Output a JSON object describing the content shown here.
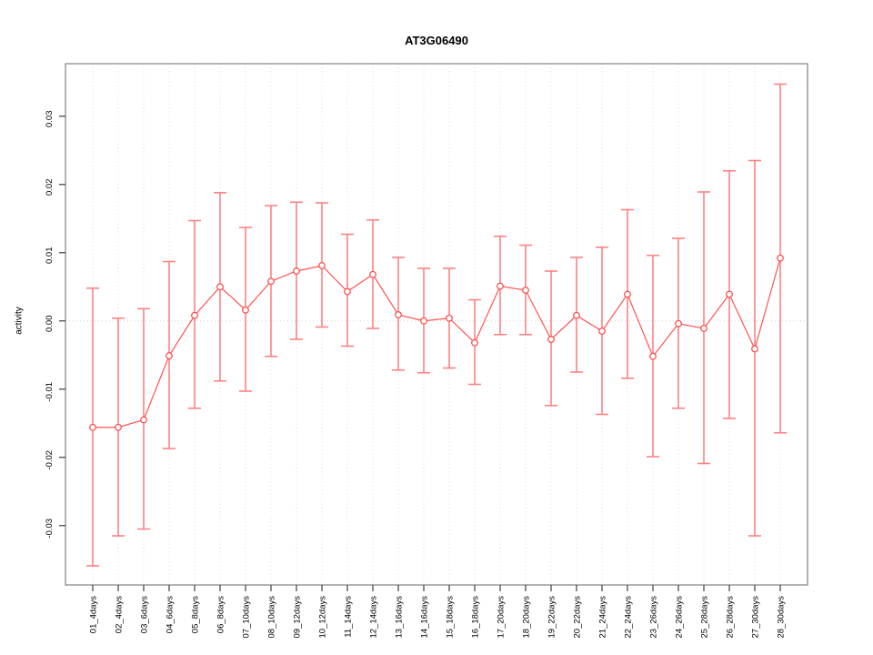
{
  "chart_data": {
    "type": "line",
    "subtype": "points-with-error-bars",
    "title": "AT3G06490",
    "xlabel": "",
    "ylabel": "activity",
    "legend": null,
    "grid": {
      "vertical_gridlines": true,
      "horizontal_zero_line": true,
      "gridline_style": "dotted"
    },
    "ylim": [
      -0.0387,
      0.0377
    ],
    "yticks": [
      -0.03,
      -0.02,
      -0.01,
      0.0,
      0.01,
      0.02,
      0.03
    ],
    "categories": [
      "01_4days",
      "02_4days",
      "03_6days",
      "04_6days",
      "05_8days",
      "06_8days",
      "07_10days",
      "08_10days",
      "09_12days",
      "10_12days",
      "11_14days",
      "12_14days",
      "13_16days",
      "14_16days",
      "15_18days",
      "16_18days",
      "17_20days",
      "18_20days",
      "19_22days",
      "20_22days",
      "21_24days",
      "22_24days",
      "23_26days",
      "24_26days",
      "25_28days",
      "26_28days",
      "27_30days",
      "28_30days"
    ],
    "series": [
      {
        "name": "activity",
        "marker": "open-circle",
        "values": [
          -0.0156,
          -0.0156,
          -0.0145,
          -0.0051,
          0.0008,
          0.005,
          0.0016,
          0.0058,
          0.0073,
          0.0081,
          0.0043,
          0.0068,
          0.0009,
          0.0,
          0.0004,
          -0.0032,
          0.0051,
          0.0045,
          -0.0027,
          0.0008,
          -0.0015,
          0.0039,
          -0.0052,
          -0.0004,
          -0.0011,
          0.0039,
          -0.0041,
          0.0092
        ],
        "error_high": [
          0.0048,
          0.0004,
          0.0018,
          0.0087,
          0.0147,
          0.0188,
          0.0137,
          0.0169,
          0.0174,
          0.0173,
          0.0127,
          0.0148,
          0.0093,
          0.0077,
          0.0077,
          0.0031,
          0.0124,
          0.0111,
          0.0073,
          0.0093,
          0.0108,
          0.0163,
          0.0096,
          0.0121,
          0.0189,
          0.022,
          0.0235,
          0.0347
        ],
        "error_low": [
          -0.0359,
          -0.0315,
          -0.0305,
          -0.0187,
          -0.0128,
          -0.0088,
          -0.0103,
          -0.0052,
          -0.0027,
          -0.0009,
          -0.0037,
          -0.0011,
          -0.0072,
          -0.0076,
          -0.0069,
          -0.0093,
          -0.002,
          -0.002,
          -0.0124,
          -0.0075,
          -0.0137,
          -0.0084,
          -0.0199,
          -0.0128,
          -0.0209,
          -0.0143,
          -0.0315,
          -0.0164
        ]
      }
    ],
    "colors": {
      "point": "#ff4545",
      "line": "#ff5252",
      "error_bar": "#ff8282",
      "grid": "#e0e0e0",
      "zero_line": "#d2d2d2",
      "frame": "#8c8c8c",
      "axis": "#4a4a4a",
      "text": "#000000"
    }
  }
}
